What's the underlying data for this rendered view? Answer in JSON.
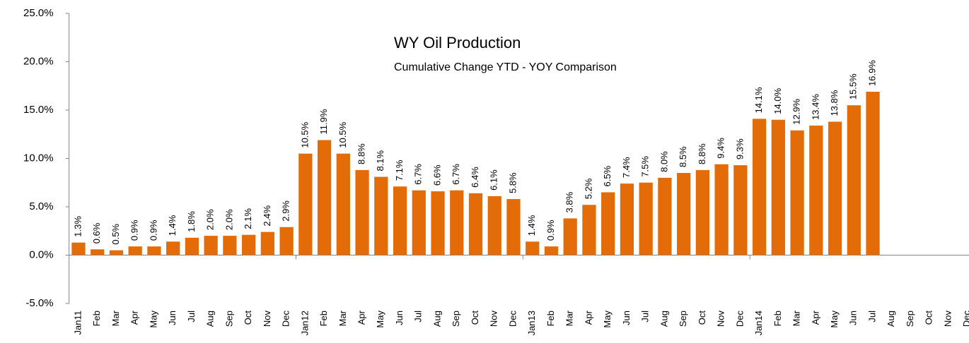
{
  "chart_data": {
    "type": "bar",
    "title": "WY Oil Production",
    "subtitle": "Cumulative Change YTD - YOY Comparison",
    "categories": [
      "Jan11",
      "Feb",
      "Mar",
      "Apr",
      "May",
      "Jun",
      "Jul",
      "Aug",
      "Sep",
      "Oct",
      "Nov",
      "Dec",
      "Jan12",
      "Feb",
      "Mar",
      "Apr",
      "May",
      "Jun",
      "Jul",
      "Aug",
      "Sep",
      "Oct",
      "Nov",
      "Dec",
      "Jan13",
      "Feb",
      "Mar",
      "Apr",
      "May",
      "Jun",
      "Jul",
      "Aug",
      "Sep",
      "Oct",
      "Nov",
      "Dec",
      "Jan14",
      "Feb",
      "Mar",
      "Apr",
      "May",
      "Jun",
      "Jul",
      "Aug",
      "Sep",
      "Oct",
      "Nov",
      "Dec"
    ],
    "values": [
      1.3,
      0.6,
      0.5,
      0.9,
      0.9,
      1.4,
      1.8,
      2.0,
      2.0,
      2.1,
      2.4,
      2.9,
      10.5,
      11.9,
      10.5,
      8.8,
      8.1,
      7.1,
      6.7,
      6.6,
      6.7,
      6.4,
      6.1,
      5.8,
      1.4,
      0.9,
      3.8,
      5.2,
      6.5,
      7.4,
      7.5,
      8.0,
      8.5,
      8.8,
      9.4,
      9.3,
      14.1,
      14.0,
      12.9,
      13.4,
      13.8,
      15.5,
      16.9,
      null,
      null,
      null,
      null,
      null
    ],
    "value_labels": [
      "1.3%",
      "0.6%",
      "0.5%",
      "0.9%",
      "0.9%",
      "1.4%",
      "1.8%",
      "2.0%",
      "2.0%",
      "2.1%",
      "2.4%",
      "2.9%",
      "10.5%",
      "11.9%",
      "10.5%",
      "8.8%",
      "8.1%",
      "7.1%",
      "6.7%",
      "6.6%",
      "6.7%",
      "6.4%",
      "6.1%",
      "5.8%",
      "1.4%",
      "0.9%",
      "3.8%",
      "5.2%",
      "6.5%",
      "7.4%",
      "7.5%",
      "8.0%",
      "8.5%",
      "8.8%",
      "9.4%",
      "9.3%",
      "14.1%",
      "14.0%",
      "12.9%",
      "13.4%",
      "13.8%",
      "15.5%",
      "16.9%",
      null,
      null,
      null,
      null,
      null
    ],
    "color": "#e36c09",
    "ylim": [
      -5,
      25
    ],
    "yticks": [
      {
        "value": -5,
        "label": "-5.0%"
      },
      {
        "value": 0,
        "label": "0.0%"
      },
      {
        "value": 5,
        "label": "5.0%"
      },
      {
        "value": 10,
        "label": "10.0%"
      },
      {
        "value": 15,
        "label": "15.0%"
      },
      {
        "value": 20,
        "label": "20.0%"
      },
      {
        "value": 25,
        "label": "25.0%"
      }
    ],
    "grid": false
  }
}
